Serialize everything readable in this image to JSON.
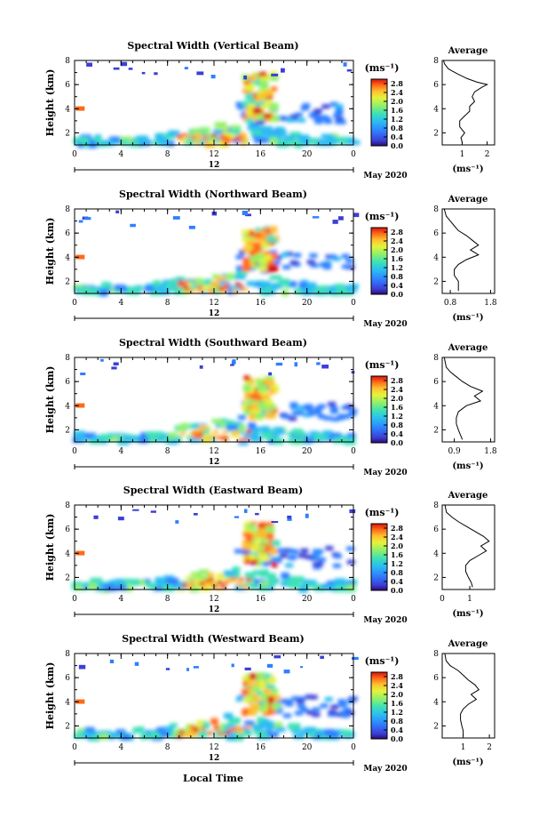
{
  "chart_data": {
    "type": "heatmap",
    "shared": {
      "x_ticks": [
        "0",
        "4",
        "8",
        "12",
        "16",
        "20",
        "0"
      ],
      "x_range_hours": [
        0,
        24
      ],
      "y_ticks": [
        "2",
        "4",
        "6",
        "8"
      ],
      "y_range_km": [
        1,
        8
      ],
      "date_label": "12",
      "month_label": "May 2020",
      "ylabel": "Height (km)",
      "colorbar_unit": "(ms⁻¹)",
      "colorbar_ticks": [
        "2.8",
        "2.4",
        "2.0",
        "1.6",
        "1.2",
        "0.8",
        "0.4",
        "0.0"
      ],
      "colorbar_range": [
        0,
        3.0
      ],
      "colormap": [
        "#2e0a6b",
        "#3b3fd6",
        "#2f7fff",
        "#2bbcf2",
        "#3de0b8",
        "#8ff06a",
        "#e6f23a",
        "#ffbe2e",
        "#ff6a1a",
        "#d8110f"
      ],
      "xlabel": "Local Time",
      "avg_title": "Average",
      "avg_xlabel": "(ms⁻¹)"
    },
    "panels": [
      {
        "title": "Spectral Width (Vertical Beam)",
        "avg_x_ticks": [
          "1",
          "2"
        ],
        "avg_x_range": [
          0.2,
          2.3
        ],
        "avg_profile": [
          [
            1.0,
            1.2
          ],
          [
            0.95,
            1.6
          ],
          [
            1.1,
            2.0
          ],
          [
            0.9,
            2.5
          ],
          [
            0.9,
            3.0
          ],
          [
            1.1,
            3.4
          ],
          [
            1.3,
            3.8
          ],
          [
            1.3,
            4.2
          ],
          [
            1.5,
            4.6
          ],
          [
            1.4,
            5.0
          ],
          [
            1.5,
            5.4
          ],
          [
            1.8,
            5.8
          ],
          [
            2.0,
            6.0
          ],
          [
            1.6,
            6.2
          ],
          [
            1.2,
            6.5
          ],
          [
            0.8,
            6.9
          ],
          [
            0.45,
            7.3
          ],
          [
            0.3,
            7.7
          ],
          [
            0.25,
            8.0
          ]
        ]
      },
      {
        "title": "Spectral Width (Northward Beam)",
        "avg_x_ticks": [
          "0.8",
          "1.8"
        ],
        "avg_x_range": [
          0.6,
          1.9
        ],
        "avg_profile": [
          [
            1.0,
            1.2
          ],
          [
            1.0,
            1.6
          ],
          [
            1.0,
            2.0
          ],
          [
            0.9,
            2.5
          ],
          [
            0.9,
            3.0
          ],
          [
            1.0,
            3.4
          ],
          [
            1.2,
            3.8
          ],
          [
            1.5,
            4.2
          ],
          [
            1.3,
            4.6
          ],
          [
            1.5,
            5.0
          ],
          [
            1.35,
            5.4
          ],
          [
            1.2,
            5.8
          ],
          [
            1.0,
            6.2
          ],
          [
            0.9,
            6.6
          ],
          [
            0.8,
            7.0
          ],
          [
            0.7,
            7.4
          ],
          [
            0.65,
            8.0
          ]
        ]
      },
      {
        "title": "Spectral Width (Southward Beam)",
        "avg_x_ticks": [
          "0.9",
          "1.8"
        ],
        "avg_x_range": [
          0.6,
          1.9
        ],
        "avg_profile": [
          [
            1.1,
            1.2
          ],
          [
            1.05,
            1.6
          ],
          [
            1.0,
            2.0
          ],
          [
            0.95,
            2.5
          ],
          [
            0.95,
            3.0
          ],
          [
            1.0,
            3.5
          ],
          [
            1.2,
            4.0
          ],
          [
            1.55,
            4.4
          ],
          [
            1.4,
            4.8
          ],
          [
            1.6,
            5.2
          ],
          [
            1.3,
            5.6
          ],
          [
            1.1,
            6.0
          ],
          [
            0.95,
            6.4
          ],
          [
            0.8,
            6.8
          ],
          [
            0.7,
            7.2
          ],
          [
            0.65,
            8.0
          ]
        ]
      },
      {
        "title": "Spectral Width (Eastward Beam)",
        "avg_x_ticks": [
          "0",
          "1"
        ],
        "avg_x_range": [
          0,
          1.9
        ],
        "avg_profile": [
          [
            1.1,
            1.2
          ],
          [
            1.05,
            1.6
          ],
          [
            0.95,
            2.0
          ],
          [
            0.85,
            2.5
          ],
          [
            0.85,
            3.0
          ],
          [
            1.0,
            3.4
          ],
          [
            1.3,
            3.8
          ],
          [
            1.6,
            4.2
          ],
          [
            1.4,
            4.6
          ],
          [
            1.7,
            5.0
          ],
          [
            1.5,
            5.4
          ],
          [
            1.2,
            5.8
          ],
          [
            0.9,
            6.2
          ],
          [
            0.6,
            6.6
          ],
          [
            0.35,
            7.0
          ],
          [
            0.15,
            7.4
          ],
          [
            0.1,
            8.0
          ]
        ]
      },
      {
        "title": "Spectral Width (Westward Beam)",
        "avg_x_ticks": [
          "1",
          "2"
        ],
        "avg_x_range": [
          0.2,
          2.2
        ],
        "avg_profile": [
          [
            1.0,
            1.2
          ],
          [
            1.0,
            1.6
          ],
          [
            0.95,
            2.0
          ],
          [
            0.9,
            2.5
          ],
          [
            0.9,
            3.0
          ],
          [
            1.0,
            3.4
          ],
          [
            1.2,
            3.8
          ],
          [
            1.5,
            4.2
          ],
          [
            1.3,
            4.6
          ],
          [
            1.6,
            5.0
          ],
          [
            1.45,
            5.4
          ],
          [
            1.2,
            5.8
          ],
          [
            1.0,
            6.2
          ],
          [
            0.8,
            6.6
          ],
          [
            0.5,
            7.0
          ],
          [
            0.35,
            7.4
          ],
          [
            0.3,
            8.0
          ]
        ]
      }
    ]
  }
}
